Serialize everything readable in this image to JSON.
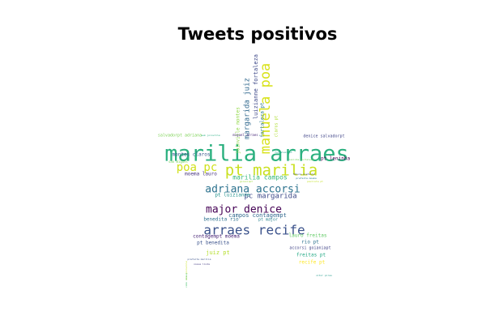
{
  "chart_data": {
    "type": "wordcloud",
    "title": "Tweets positivos",
    "mask_shape": "star",
    "words": [
      {
        "text": "marilia arraes",
        "color": "#2bb07f"
      },
      {
        "text": "pt marilia",
        "color": "#c9e020"
      },
      {
        "text": "manuela poa",
        "color": "#d8e219"
      },
      {
        "text": "poa pc",
        "color": "#d0e11c"
      },
      {
        "text": "adriana accorsi",
        "color": "#2c728e"
      },
      {
        "text": "arraes recife",
        "color": "#3b528b"
      },
      {
        "text": "major denice",
        "color": "#440154"
      },
      {
        "text": "margarida juiz",
        "color": "#31688e"
      },
      {
        "text": "pc margarida",
        "color": "#3e4a89"
      },
      {
        "text": "marilia campos",
        "color": "#35b779"
      },
      {
        "text": "luizianne fortaleza",
        "color": "#3e4989"
      },
      {
        "text": "joinville montes",
        "color": "#8fd744"
      },
      {
        "text": "fortaleza pt",
        "color": "#2a788e"
      },
      {
        "text": "claros pt",
        "color": "#addc30"
      },
      {
        "text": "montes claros",
        "color": "#38598c"
      },
      {
        "text": "moema lauro",
        "color": "#46327e"
      },
      {
        "text": "pt luizianne",
        "color": "#21918c"
      },
      {
        "text": "campos contagempt",
        "color": "#31688e"
      },
      {
        "text": "benedita rio",
        "color": "#2d708e"
      },
      {
        "text": "pt major",
        "color": "#26828e"
      },
      {
        "text": "pt leninha",
        "color": "#440154"
      },
      {
        "text": "lauro freitas",
        "color": "#5ec962"
      },
      {
        "text": "contagempt moema",
        "color": "#482475"
      },
      {
        "text": "pt benedita",
        "color": "#3b528b"
      },
      {
        "text": "rio pt",
        "color": "#2c728e"
      },
      {
        "text": "accorsi goianiapt",
        "color": "#414487"
      },
      {
        "text": "juiz pt",
        "color": "#b5de2b"
      },
      {
        "text": "freitas pt",
        "color": "#22a884"
      },
      {
        "text": "recife pt",
        "color": "#fde725"
      },
      {
        "text": "salvadorpt adriana",
        "color": "#7ad151"
      },
      {
        "text": "denice salvadorpt",
        "color": "#404588"
      },
      {
        "text": "miguel arraes",
        "color": "#482878"
      },
      {
        "text": "sao miguel",
        "color": "#73d056"
      },
      {
        "text": "fortaleza pt",
        "color": "#1fa187"
      },
      {
        "text": "leninha fortaleza",
        "color": "#6ece58"
      },
      {
        "text": "fútura prefeita",
        "color": "#3e4a89"
      },
      {
        "text": "prefeita moema",
        "color": "#2a788e"
      },
      {
        "text": "goianiapt",
        "color": "#9fda3a"
      },
      {
        "text": "paulista pt",
        "color": "#c2df23"
      },
      {
        "text": "prefeita marilia",
        "color": "#3b528b"
      },
      {
        "text": "nossa linda",
        "color": "#443a83"
      },
      {
        "text": "nós joinville",
        "color": "#c5e021"
      },
      {
        "text": "cabo nossa",
        "color": "#48c16e"
      },
      {
        "text": "vitor pires",
        "color": "#1f998a"
      },
      {
        "text": "sem joinville",
        "color": "#26ad81"
      }
    ]
  }
}
